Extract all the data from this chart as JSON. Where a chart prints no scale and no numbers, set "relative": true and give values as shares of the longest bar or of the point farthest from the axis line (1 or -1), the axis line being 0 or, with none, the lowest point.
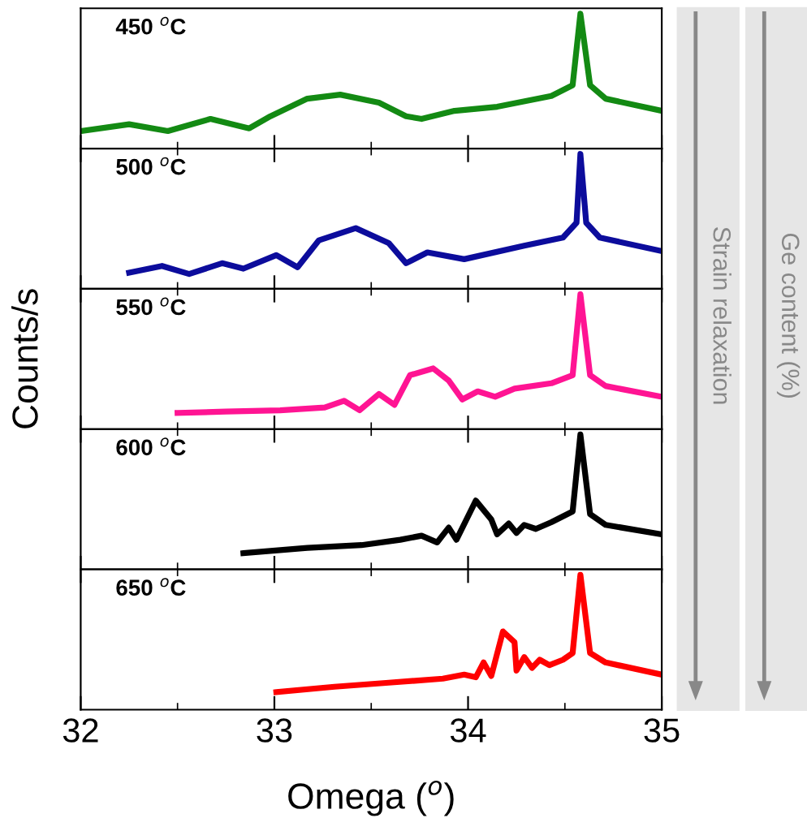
{
  "chart_data": [
    {
      "type": "line",
      "relative": true,
      "xlim": [
        32,
        35
      ],
      "xticks": [
        32,
        33,
        34,
        35
      ],
      "tick_labels": false,
      "grid": false,
      "legend": false,
      "annotations": [
        "450 $^{o}$C",
        "Strain relaxation",
        "Ge content (%)"
      ],
      "series": [
        {
          "color": "#138a13",
          "x": [
            32.0,
            32.25,
            32.45,
            32.67,
            32.87,
            32.98,
            33.17,
            33.34,
            33.54,
            33.68,
            33.76,
            33.93,
            34.15,
            34.43,
            34.54,
            34.58,
            34.63,
            34.71,
            35.0
          ],
          "values": [
            0.13,
            0.18,
            0.13,
            0.22,
            0.15,
            0.24,
            0.37,
            0.4,
            0.34,
            0.24,
            0.22,
            0.28,
            0.31,
            0.39,
            0.47,
            1.0,
            0.47,
            0.37,
            0.28
          ]
        }
      ]
    },
    {
      "type": "line",
      "relative": true,
      "xlim": [
        32,
        35
      ],
      "xticks": [
        32,
        33,
        34,
        35
      ],
      "tick_labels": false,
      "grid": false,
      "legend": false,
      "annotations": [
        "500 $^{o}$C"
      ],
      "series": [
        {
          "color": "#0c0c9c",
          "x": [
            32.25,
            32.42,
            32.56,
            32.73,
            32.84,
            33.01,
            33.12,
            33.23,
            33.42,
            33.59,
            33.68,
            33.79,
            33.98,
            34.29,
            34.49,
            34.56,
            34.58,
            34.61,
            34.68,
            35.0
          ],
          "values": [
            0.12,
            0.17,
            0.11,
            0.19,
            0.15,
            0.25,
            0.16,
            0.36,
            0.45,
            0.34,
            0.19,
            0.27,
            0.22,
            0.32,
            0.38,
            0.49,
            1.0,
            0.49,
            0.38,
            0.28
          ]
        }
      ]
    },
    {
      "type": "line",
      "relative": true,
      "xlim": [
        32,
        35
      ],
      "xticks": [
        32,
        33,
        34,
        35
      ],
      "tick_labels": false,
      "grid": false,
      "legend": false,
      "ylabel": "Counts/s",
      "annotations": [
        "550 $^{o}$C"
      ],
      "series": [
        {
          "color": "#ff1493",
          "x": [
            32.5,
            32.75,
            33.03,
            33.26,
            33.36,
            33.44,
            33.54,
            33.62,
            33.7,
            33.82,
            33.9,
            33.97,
            34.05,
            34.14,
            34.24,
            34.43,
            34.54,
            34.58,
            34.63,
            34.71,
            35.0
          ],
          "values": [
            0.12,
            0.13,
            0.14,
            0.16,
            0.21,
            0.14,
            0.26,
            0.18,
            0.4,
            0.45,
            0.36,
            0.22,
            0.28,
            0.24,
            0.3,
            0.34,
            0.4,
            1.0,
            0.4,
            0.32,
            0.24
          ]
        }
      ]
    },
    {
      "type": "line",
      "relative": true,
      "xlim": [
        32,
        35
      ],
      "xticks": [
        32,
        33,
        34,
        35
      ],
      "tick_labels": false,
      "grid": false,
      "legend": false,
      "annotations": [
        "600 $^{o}$C"
      ],
      "series": [
        {
          "color": "#000000",
          "x": [
            32.84,
            33.17,
            33.45,
            33.65,
            33.76,
            33.84,
            33.9,
            33.94,
            34.04,
            34.12,
            34.15,
            34.21,
            34.25,
            34.29,
            34.35,
            34.43,
            34.54,
            34.58,
            34.63,
            34.71,
            35.0
          ],
          "values": [
            0.12,
            0.16,
            0.18,
            0.22,
            0.25,
            0.2,
            0.31,
            0.22,
            0.51,
            0.37,
            0.26,
            0.34,
            0.27,
            0.33,
            0.3,
            0.35,
            0.43,
            1.0,
            0.41,
            0.33,
            0.26
          ]
        }
      ]
    },
    {
      "type": "line",
      "relative": true,
      "xlim": [
        32,
        35
      ],
      "xticks": [
        32,
        33,
        34,
        35
      ],
      "tick_labels": "x",
      "grid": false,
      "legend": false,
      "xlabel": "Omega ($^{o}$)",
      "annotations": [
        "650 $^{o}$C"
      ],
      "series": [
        {
          "color": "#ff0000",
          "x": [
            33.01,
            33.31,
            33.59,
            33.87,
            33.98,
            34.04,
            34.08,
            34.12,
            34.18,
            34.24,
            34.25,
            34.29,
            34.33,
            34.37,
            34.42,
            34.49,
            34.54,
            34.58,
            34.63,
            34.71,
            35.0
          ],
          "values": [
            0.13,
            0.17,
            0.2,
            0.23,
            0.26,
            0.24,
            0.35,
            0.25,
            0.58,
            0.5,
            0.29,
            0.39,
            0.31,
            0.37,
            0.33,
            0.37,
            0.42,
            1.0,
            0.42,
            0.35,
            0.26
          ]
        }
      ]
    }
  ]
}
